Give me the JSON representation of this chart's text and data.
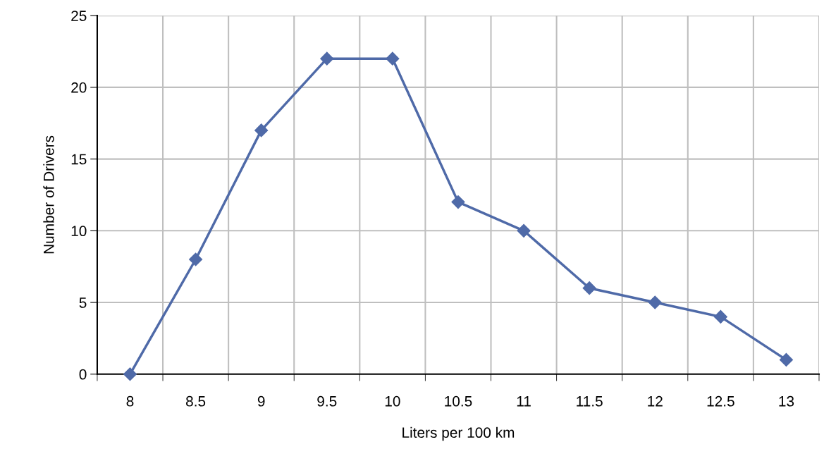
{
  "chart_data": {
    "type": "line",
    "xlabel": "Liters per 100 km",
    "ylabel": "Number of Drivers",
    "categories": [
      "8",
      "8.5",
      "9",
      "9.5",
      "10",
      "10.5",
      "11",
      "11.5",
      "12",
      "12.5",
      "13"
    ],
    "series": [
      {
        "color": "#4f6aa8",
        "values": [
          0,
          8,
          17,
          22,
          22,
          12,
          10,
          6,
          5,
          4,
          1
        ]
      }
    ],
    "ylim": [
      0,
      25
    ],
    "yticks": [
      0,
      5,
      10,
      15,
      20,
      25
    ],
    "grid": true,
    "marker": "diamond",
    "line_style": "solid",
    "legend": false
  }
}
